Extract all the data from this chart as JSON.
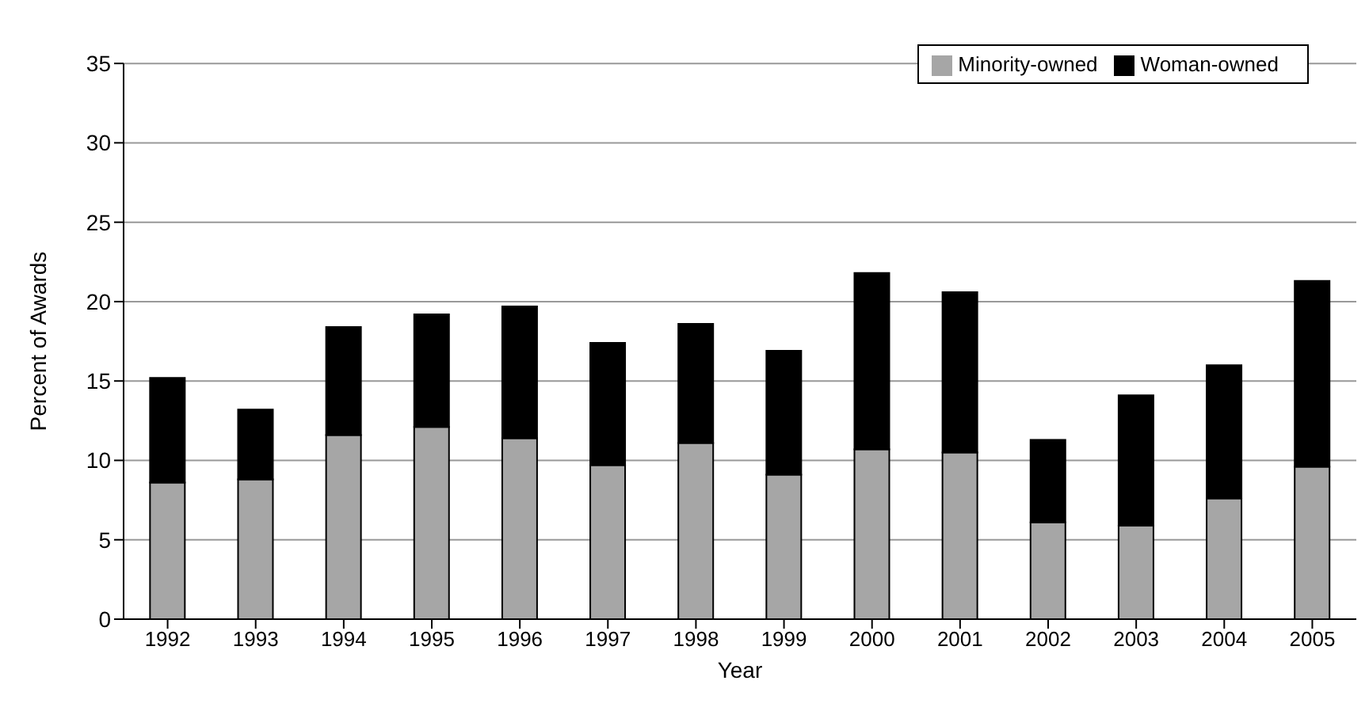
{
  "chart_data": {
    "type": "bar",
    "xlabel": "Year",
    "ylabel": "Percent of Awards",
    "stacked": true,
    "categories": [
      "1992",
      "1993",
      "1994",
      "1995",
      "1996",
      "1997",
      "1998",
      "1999",
      "2000",
      "2001",
      "2002",
      "2003",
      "2004",
      "2005"
    ],
    "series": [
      {
        "name": "Minority-owned",
        "color": "#a6a6a6",
        "values": [
          8.6,
          8.8,
          11.6,
          12.1,
          11.4,
          9.7,
          11.1,
          9.1,
          10.7,
          10.5,
          6.1,
          5.9,
          7.6,
          9.6
        ]
      },
      {
        "name": "Woman-owned",
        "color": "#000000",
        "values": [
          6.6,
          4.4,
          6.8,
          7.1,
          8.3,
          7.7,
          7.5,
          7.8,
          11.1,
          10.1,
          5.2,
          8.2,
          8.4,
          11.7
        ]
      }
    ],
    "ylim": [
      0,
      35
    ],
    "yticks": [
      0,
      5,
      10,
      15,
      20,
      25,
      30,
      35
    ],
    "grid": "y",
    "legend": "top right"
  }
}
